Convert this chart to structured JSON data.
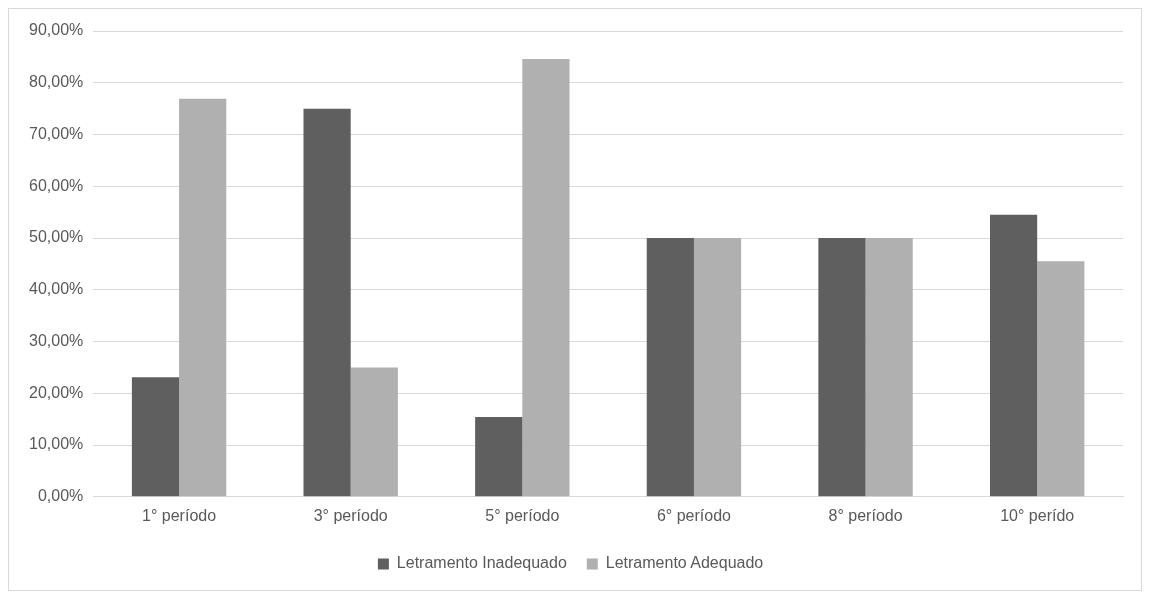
{
  "chart_data": {
    "type": "bar",
    "categories": [
      "1° período",
      "3° período",
      "5° período",
      "6° período",
      "8° período",
      "10° perído"
    ],
    "series": [
      {
        "name": "Letramento Inadequado",
        "color": "#5f5f5f",
        "values": [
          23.1,
          75,
          15.4,
          50,
          50,
          54.5
        ]
      },
      {
        "name": "Letramento Adequado",
        "color": "#b0b0b0",
        "values": [
          76.9,
          25,
          84.6,
          50,
          50,
          45.5
        ]
      }
    ],
    "ylim": [
      0,
      90
    ],
    "yticks": [
      {
        "value": 0,
        "label": "0,00%"
      },
      {
        "value": 10,
        "label": "10,00%"
      },
      {
        "value": 20,
        "label": "20,00%"
      },
      {
        "value": 30,
        "label": "30,00%"
      },
      {
        "value": 40,
        "label": "40,00%"
      },
      {
        "value": 50,
        "label": "50,00%"
      },
      {
        "value": 60,
        "label": "60,00%"
      },
      {
        "value": 70,
        "label": "70,00%"
      },
      {
        "value": 80,
        "label": "80,00%"
      },
      {
        "value": 90,
        "label": "90,00%"
      }
    ],
    "grid": "y",
    "legend": "bottom"
  }
}
